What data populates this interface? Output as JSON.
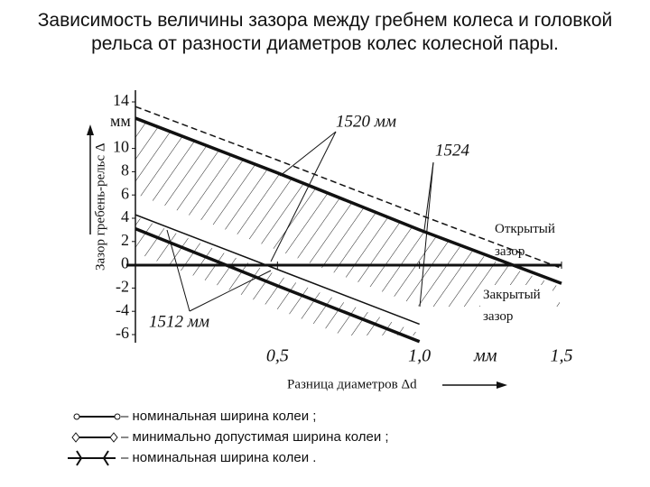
{
  "chart_data": {
    "type": "line",
    "title": "Зависимость величины зазора между гребнем колеса и головкой рельса от разности диаметров колес колесной пары.",
    "y_label": "Зазор гребень-рельс Δ",
    "y_unit": "мм",
    "x_label": "Разница диаметров Δd",
    "x_unit": "мм",
    "x": [
      0,
      0.5,
      1,
      1.5
    ],
    "xlim": [
      0,
      1.5
    ],
    "xticks": [
      {
        "value": 0.5,
        "label": "0,5"
      },
      {
        "value": 1,
        "label": "1,0"
      },
      {
        "value": 1.5,
        "label": "1,5"
      }
    ],
    "ylim": [
      -6,
      14
    ],
    "yticks": [
      14,
      10,
      8,
      6,
      4,
      2,
      0,
      -2,
      -4,
      -6
    ],
    "series": [
      {
        "name": "1524",
        "color": "#111111",
        "style": "dashed",
        "values": [
          13.6,
          9,
          4.3,
          -0.3
        ]
      },
      {
        "name": "1520 мм",
        "color": "#111111",
        "style": "thick",
        "values": [
          12.6,
          7.9,
          3,
          -1.6
        ]
      },
      {
        "color": "#111111",
        "style": "thin",
        "values": [
          4.3,
          -0.4,
          -5.1,
          null
        ]
      },
      {
        "name": "1512 мм",
        "color": "#111111",
        "style": "thick",
        "values": [
          3.1,
          -1.8,
          -6.6,
          null
        ]
      }
    ],
    "annotations": {
      "open_gap": "Открытый зазор",
      "closed_gap": "Закрытый зазор"
    },
    "legend": [
      "– номинальная ширина колеи ;",
      "– минимально допустимая ширина колеи ;",
      "– номинальная ширина колеи ."
    ]
  }
}
